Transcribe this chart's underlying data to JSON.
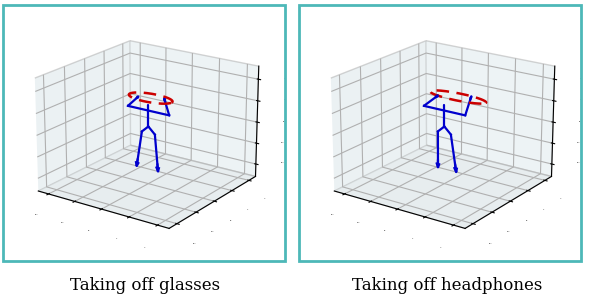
{
  "title1": "Taking off glasses",
  "title2": "Taking off headphones",
  "border_color": "#4db8b8",
  "blue_color": "#0000cd",
  "red_color": "#cc0000",
  "fig_width": 5.92,
  "fig_height": 3.0,
  "view_elev": 20,
  "view_azim": -55,
  "xlim": [
    -1.2,
    1.2
  ],
  "ylim": [
    -1.2,
    1.2
  ],
  "zlim": [
    -1.3,
    1.3
  ],
  "pane_color_x": "#d8e4e8",
  "pane_color_y": "#dce8ec",
  "pane_color_z": "#d0dce0",
  "grid_color": "#b0b8bc",
  "caption_fontsize": 12
}
